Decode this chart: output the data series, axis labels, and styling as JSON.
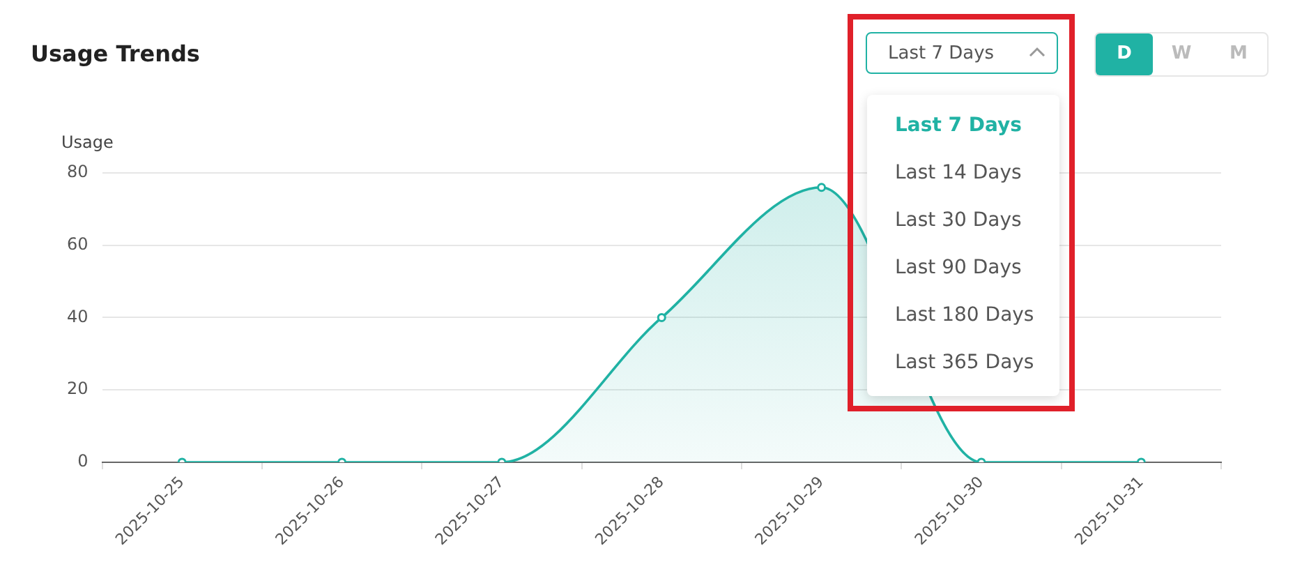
{
  "chart_data": {
    "type": "area",
    "title": "Usage Trends",
    "ylabel": "Usage",
    "categories": [
      "2025-10-25",
      "2025-10-26",
      "2025-10-27",
      "2025-10-28",
      "2025-10-29",
      "2025-10-30",
      "2025-10-31"
    ],
    "series": [
      {
        "color": "#20b2a4",
        "values": [
          0,
          0,
          0,
          40,
          76,
          0,
          0
        ]
      }
    ],
    "ylim": [
      0,
      80
    ],
    "yticks": [
      0,
      20,
      40,
      60,
      80
    ],
    "grid": "y",
    "legend": false,
    "marker": "circle",
    "line_style": "solid",
    "annotations": [
      "Last 7 Days",
      "Last 7 Days",
      "Last 14 Days",
      "Last 30 Days",
      "Last 90 Days",
      "Last 180 Days",
      "Last 365 Days",
      "D",
      "W",
      "M"
    ]
  }
}
